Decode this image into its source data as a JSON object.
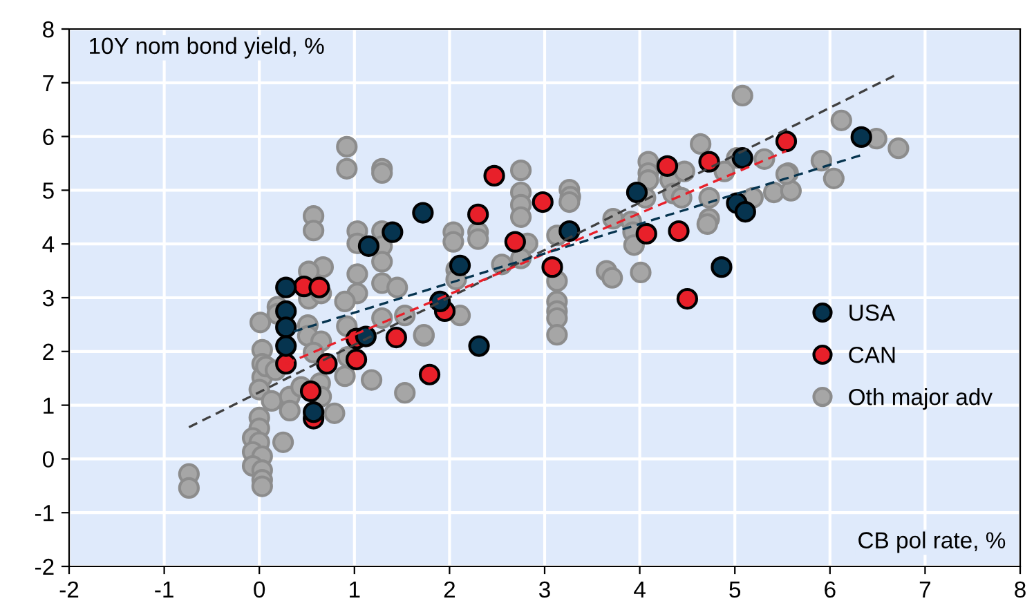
{
  "chart_data": {
    "type": "scatter",
    "ylabel": "10Y nom bond yield, %",
    "xlabel": "CB pol rate, %",
    "xlim": [
      -2,
      8
    ],
    "ylim": [
      -2,
      8
    ],
    "xticks": [
      -2,
      -1,
      0,
      1,
      2,
      3,
      4,
      5,
      6,
      7,
      8
    ],
    "yticks": [
      -2,
      -1,
      0,
      1,
      2,
      3,
      4,
      5,
      6,
      7,
      8
    ],
    "grid": true,
    "legend": "right",
    "marker": "circle",
    "series": [
      {
        "name": "Oth major adv",
        "color": "#a6a6a6",
        "x": [
          0.92,
          0.92,
          1.29,
          1.29,
          0.57,
          0.57,
          1.03,
          1.03,
          1.29,
          1.29,
          1.29,
          1.29,
          1.45,
          1.03,
          1.03,
          0.9,
          0.92,
          1.29,
          1.53,
          1.73,
          0.67,
          0.52,
          0.52,
          0.65,
          0.19,
          0.01,
          0.19,
          0.51,
          0.51,
          0.65,
          0.57,
          0.93,
          0.9,
          1.18,
          1.53,
          0.79,
          0.03,
          0.03,
          0.03,
          0.07,
          0.17,
          0,
          0.13,
          0.32,
          0.32,
          0.44,
          0.64,
          0.65,
          0,
          0,
          -0.07,
          0,
          -0.07,
          0.03,
          -0.07,
          0.03,
          0.03,
          0.03,
          0.25,
          -0.74,
          -0.74,
          2.75,
          2.75,
          2.75,
          2.75,
          3.26,
          3.27,
          3.26,
          2.04,
          2.04,
          2.3,
          2.3,
          2.82,
          2.75,
          3.13,
          2.55,
          2.07,
          2.07,
          3.13,
          3.13,
          3.13,
          3.13,
          3.13,
          2.11,
          1.73,
          3.65,
          3.71,
          4.01,
          3.72,
          3.91,
          3.93,
          3.94,
          4.09,
          4.09,
          4.09,
          4.32,
          4.35,
          4.47,
          4.44,
          4.06,
          4.64,
          4.89,
          5.02,
          4.73,
          4.73,
          4.71,
          5.08,
          5.31,
          5.56,
          5.41,
          5.59,
          5.19,
          6.12,
          6.49,
          6.72,
          5.91,
          6.04,
          5.54
        ],
        "values": [
          5.81,
          5.4,
          5.4,
          5.32,
          4.52,
          4.25,
          4.24,
          4.01,
          4.24,
          3.96,
          3.67,
          3.27,
          3.19,
          3.44,
          3.08,
          2.93,
          2.47,
          2.62,
          2.67,
          2.29,
          3.57,
          3.49,
          2.98,
          3.08,
          2.83,
          2.54,
          2.7,
          2.49,
          2.29,
          2.19,
          1.98,
          1.9,
          1.54,
          1.47,
          1.23,
          0.85,
          2.03,
          1.77,
          1.52,
          1.72,
          1.65,
          1.29,
          1.08,
          1.16,
          0.9,
          1.34,
          1.41,
          1.16,
          0.77,
          0.57,
          0.39,
          0.31,
          0.13,
          0.05,
          -0.13,
          -0.21,
          -0.39,
          -0.51,
          0.31,
          -0.28,
          -0.54,
          5.37,
          4.96,
          4.73,
          4.5,
          5.01,
          4.88,
          4.78,
          4.22,
          4.04,
          4.22,
          4.09,
          4.01,
          3.73,
          4.16,
          3.62,
          3.52,
          3.34,
          3.31,
          2.93,
          2.75,
          2.62,
          2.31,
          2.67,
          2.31,
          3.5,
          3.37,
          3.47,
          4.47,
          4.42,
          4.22,
          3.98,
          5.53,
          5.32,
          5.19,
          5.19,
          4.94,
          5.35,
          4.86,
          4.86,
          5.86,
          5.35,
          5.6,
          4.86,
          4.47,
          4.37,
          6.76,
          5.58,
          5.32,
          4.96,
          4.99,
          4.86,
          6.3,
          5.96,
          5.78,
          5.55,
          5.22,
          5.3
        ]
      },
      {
        "name": "CAN",
        "color": "#e8202a",
        "x": [
          0.47,
          0.63,
          0.28,
          0.71,
          0.54,
          0.57,
          1.02,
          1.02,
          1.44,
          1.79,
          1.95,
          2.3,
          2.47,
          2.69,
          2.98,
          3.08,
          4.07,
          4.29,
          4.41,
          4.5,
          4.73,
          5.54
        ],
        "values": [
          3.21,
          3.19,
          1.77,
          1.77,
          1.26,
          0.75,
          2.24,
          1.85,
          2.26,
          1.57,
          2.75,
          4.55,
          5.27,
          4.04,
          4.78,
          3.57,
          4.19,
          5.45,
          4.24,
          2.98,
          5.53,
          5.91
        ]
      },
      {
        "name": "USA",
        "color": "#06344f",
        "x": [
          0.28,
          0.28,
          0.28,
          0.28,
          0.57,
          1.12,
          1.15,
          1.4,
          1.72,
          1.9,
          2.11,
          2.31,
          3.26,
          3.97,
          5.08,
          5.02,
          5.11,
          4.86,
          6.33
        ],
        "values": [
          3.19,
          2.75,
          2.45,
          2.1,
          0.87,
          2.28,
          3.96,
          4.22,
          4.58,
          2.93,
          3.6,
          2.1,
          4.24,
          4.96,
          5.6,
          4.76,
          4.6,
          3.57,
          5.99
        ]
      },
      {
        "type": "line",
        "color": "#404040",
        "line_style": "dashed",
        "marker": "none",
        "x": [
          -0.74,
          6.72
        ],
        "values": [
          0.59,
          7.17
        ]
      },
      {
        "type": "line",
        "color": "#e8202a",
        "line_style": "dashed",
        "marker": "none",
        "x": [
          0.28,
          5.54
        ],
        "values": [
          1.77,
          5.73
        ]
      },
      {
        "type": "line",
        "color": "#06344f",
        "line_style": "dashed",
        "marker": "none",
        "x": [
          0.36,
          6.34
        ],
        "values": [
          2.37,
          5.66
        ]
      }
    ]
  }
}
